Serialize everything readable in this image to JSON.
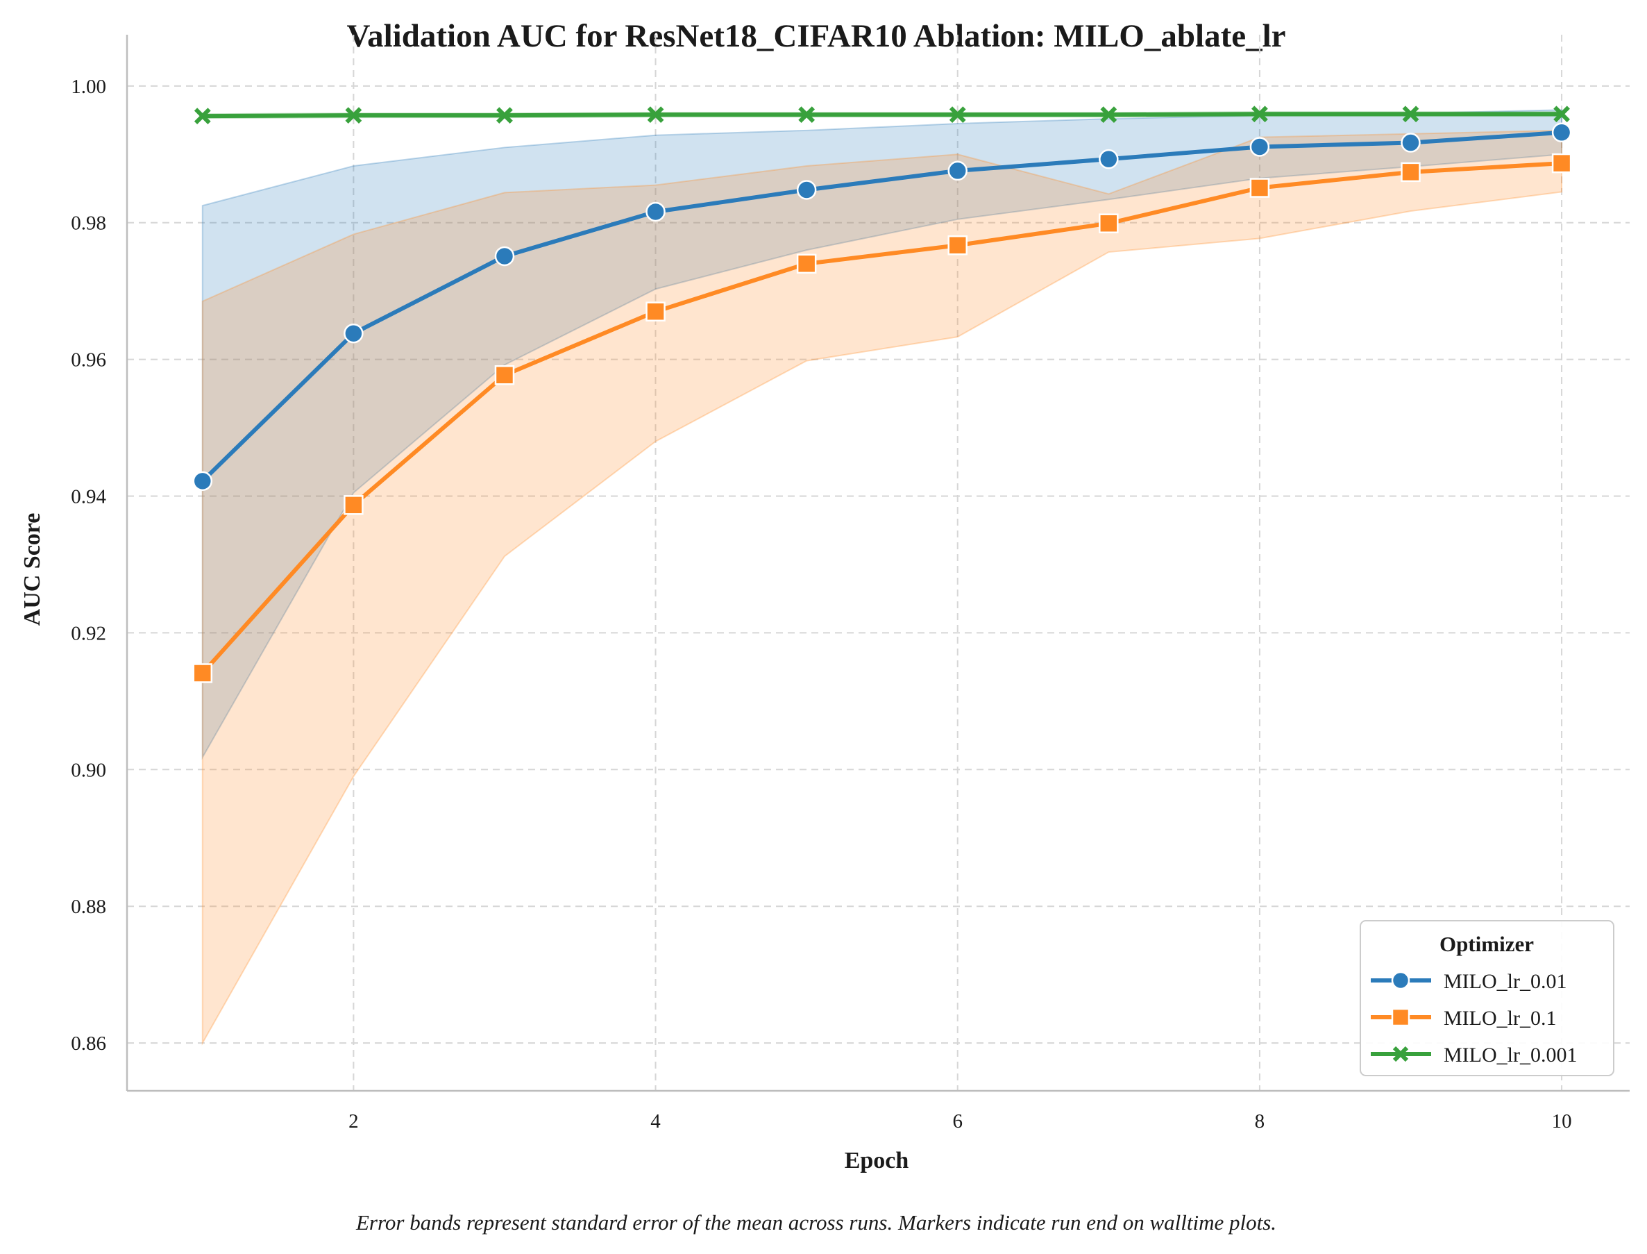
{
  "chart_data": {
    "type": "line",
    "title": "Validation AUC for ResNet18_CIFAR10 Ablation: MILO_ablate_lr",
    "xlabel": "Epoch",
    "ylabel": "AUC Score",
    "caption": "Error bands represent standard error of the mean across runs. Markers indicate run end on walltime plots.",
    "xlim": [
      0.5,
      10.45
    ],
    "ylim": [
      0.853,
      1.0075
    ],
    "x_ticks": [
      2,
      4,
      6,
      8,
      10
    ],
    "y_ticks": [
      0.86,
      0.88,
      0.9,
      0.92,
      0.94,
      0.96,
      0.98,
      1.0
    ],
    "x_tick_labels": [
      "2",
      "4",
      "6",
      "8",
      "10"
    ],
    "y_tick_labels": [
      "0.86",
      "0.88",
      "0.90",
      "0.92",
      "0.94",
      "0.96",
      "0.98",
      "1.00"
    ],
    "grid": true,
    "legend": {
      "title": "Optimizer",
      "position": "lower-right"
    },
    "x": [
      1,
      2,
      3,
      4,
      5,
      6,
      7,
      8,
      9,
      10
    ],
    "series": [
      {
        "name": "MILO_lr_0.01",
        "color": "#2b7bba",
        "marker": "circle",
        "values": [
          0.9422,
          0.9638,
          0.9751,
          0.9816,
          0.9848,
          0.9876,
          0.9893,
          0.9911,
          0.9917,
          0.9932
        ],
        "lower": [
          0.9018,
          0.9405,
          0.9592,
          0.9703,
          0.976,
          0.9805,
          0.9834,
          0.9865,
          0.9882,
          0.99
        ],
        "upper": [
          0.9825,
          0.9883,
          0.991,
          0.9928,
          0.9935,
          0.9945,
          0.9952,
          0.9957,
          0.996,
          0.9965
        ]
      },
      {
        "name": "MILO_lr_0.1",
        "color": "#ff8a24",
        "marker": "square",
        "values": [
          0.9141,
          0.9387,
          0.9577,
          0.967,
          0.974,
          0.9767,
          0.9799,
          0.9851,
          0.9874,
          0.9887
        ],
        "lower": [
          0.86,
          0.899,
          0.9312,
          0.948,
          0.9598,
          0.9633,
          0.9757,
          0.9777,
          0.9817,
          0.9845
        ],
        "upper": [
          0.9685,
          0.9783,
          0.9844,
          0.9855,
          0.9883,
          0.99,
          0.9842,
          0.9925,
          0.993,
          0.9935
        ]
      },
      {
        "name": "MILO_lr_0.001",
        "color": "#38a13c",
        "marker": "x",
        "values": [
          0.9956,
          0.9957,
          0.9957,
          0.9958,
          0.9958,
          0.9958,
          0.9958,
          0.9959,
          0.9959,
          0.9959
        ],
        "lower": [
          0.9953,
          0.9954,
          0.9954,
          0.9955,
          0.9955,
          0.9955,
          0.9955,
          0.9956,
          0.9956,
          0.9956
        ],
        "upper": [
          0.9959,
          0.996,
          0.996,
          0.9961,
          0.9961,
          0.9961,
          0.9961,
          0.9962,
          0.9962,
          0.9962
        ]
      }
    ]
  }
}
